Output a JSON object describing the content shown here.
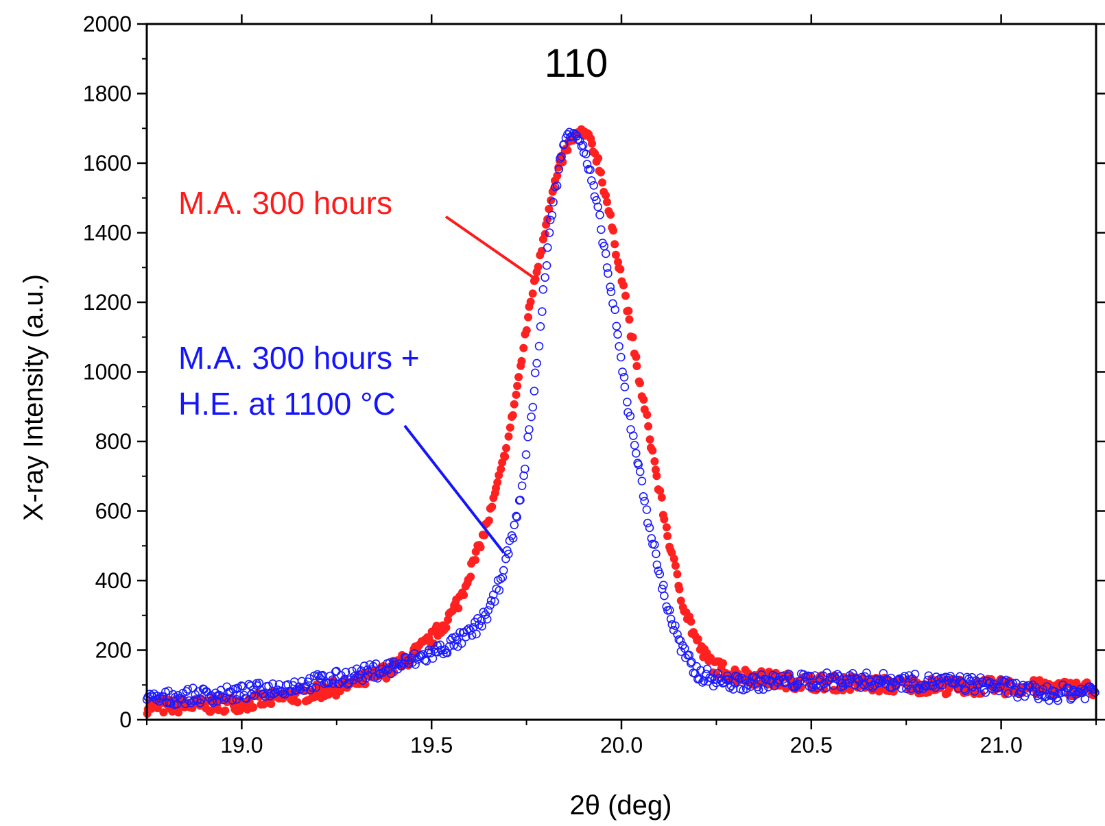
{
  "chart_data": {
    "type": "scatter",
    "title": "110",
    "xlabel": "2θ (deg)",
    "ylabel": "X-ray Intensity (a.u.)",
    "xlim": [
      18.75,
      21.25
    ],
    "ylim": [
      0,
      2000
    ],
    "x_ticks": [
      19.0,
      19.5,
      20.0,
      20.5,
      21.0
    ],
    "x_tick_labels": [
      "19.0",
      "19.5",
      "20.0",
      "20.5",
      "21.0"
    ],
    "y_ticks": [
      0,
      200,
      400,
      600,
      800,
      1000,
      1200,
      1400,
      1600,
      1800,
      2000
    ],
    "y_tick_labels": [
      "0",
      "200",
      "400",
      "600",
      "800",
      "1000",
      "1200",
      "1400",
      "1600",
      "1800",
      "2000"
    ],
    "grid": false,
    "series": [
      {
        "name": "M.A. 300 hours",
        "marker": "filled-circle",
        "color": "#ff2020",
        "points": [
          [
            18.75,
            40
          ],
          [
            18.8,
            38
          ],
          [
            18.85,
            42
          ],
          [
            18.9,
            40
          ],
          [
            18.95,
            45
          ],
          [
            19.0,
            48
          ],
          [
            19.05,
            55
          ],
          [
            19.1,
            62
          ],
          [
            19.15,
            70
          ],
          [
            19.2,
            80
          ],
          [
            19.25,
            92
          ],
          [
            19.3,
            105
          ],
          [
            19.35,
            125
          ],
          [
            19.4,
            150
          ],
          [
            19.45,
            185
          ],
          [
            19.5,
            230
          ],
          [
            19.55,
            300
          ],
          [
            19.58,
            360
          ],
          [
            19.6,
            420
          ],
          [
            19.63,
            510
          ],
          [
            19.65,
            580
          ],
          [
            19.68,
            700
          ],
          [
            19.7,
            800
          ],
          [
            19.72,
            920
          ],
          [
            19.74,
            1050
          ],
          [
            19.76,
            1200
          ],
          [
            19.78,
            1300
          ],
          [
            19.8,
            1420
          ],
          [
            19.82,
            1520
          ],
          [
            19.84,
            1600
          ],
          [
            19.86,
            1650
          ],
          [
            19.88,
            1680
          ],
          [
            19.9,
            1690
          ],
          [
            19.92,
            1660
          ],
          [
            19.94,
            1600
          ],
          [
            19.96,
            1500
          ],
          [
            19.98,
            1380
          ],
          [
            20.0,
            1280
          ],
          [
            20.02,
            1150
          ],
          [
            20.04,
            1020
          ],
          [
            20.06,
            900
          ],
          [
            20.08,
            780
          ],
          [
            20.1,
            660
          ],
          [
            20.12,
            540
          ],
          [
            20.14,
            440
          ],
          [
            20.16,
            350
          ],
          [
            20.18,
            280
          ],
          [
            20.2,
            220
          ],
          [
            20.22,
            180
          ],
          [
            20.25,
            150
          ],
          [
            20.3,
            130
          ],
          [
            20.4,
            115
          ],
          [
            20.5,
            108
          ],
          [
            20.6,
            105
          ],
          [
            20.7,
            100
          ],
          [
            20.8,
            98
          ],
          [
            20.9,
            95
          ],
          [
            21.0,
            95
          ],
          [
            21.1,
            92
          ],
          [
            21.2,
            90
          ],
          [
            21.25,
            88
          ]
        ]
      },
      {
        "name": "M.A. 300 hours + H.E. at 1100 °C",
        "marker": "open-circle",
        "color": "#1a1aff",
        "points": [
          [
            18.75,
            55
          ],
          [
            18.8,
            62
          ],
          [
            18.85,
            68
          ],
          [
            18.9,
            70
          ],
          [
            18.95,
            72
          ],
          [
            19.0,
            78
          ],
          [
            19.05,
            85
          ],
          [
            19.1,
            92
          ],
          [
            19.15,
            100
          ],
          [
            19.2,
            110
          ],
          [
            19.25,
            118
          ],
          [
            19.3,
            128
          ],
          [
            19.35,
            140
          ],
          [
            19.4,
            152
          ],
          [
            19.45,
            170
          ],
          [
            19.5,
            190
          ],
          [
            19.55,
            215
          ],
          [
            19.6,
            245
          ],
          [
            19.63,
            280
          ],
          [
            19.66,
            330
          ],
          [
            19.68,
            400
          ],
          [
            19.7,
            480
          ],
          [
            19.72,
            560
          ],
          [
            19.74,
            680
          ],
          [
            19.76,
            850
          ],
          [
            19.78,
            1050
          ],
          [
            19.8,
            1300
          ],
          [
            19.82,
            1480
          ],
          [
            19.84,
            1620
          ],
          [
            19.86,
            1690
          ],
          [
            19.88,
            1690
          ],
          [
            19.9,
            1640
          ],
          [
            19.92,
            1560
          ],
          [
            19.94,
            1450
          ],
          [
            19.96,
            1320
          ],
          [
            19.98,
            1180
          ],
          [
            20.0,
            1020
          ],
          [
            20.02,
            880
          ],
          [
            20.04,
            760
          ],
          [
            20.06,
            640
          ],
          [
            20.08,
            520
          ],
          [
            20.1,
            420
          ],
          [
            20.12,
            330
          ],
          [
            20.14,
            260
          ],
          [
            20.16,
            200
          ],
          [
            20.18,
            160
          ],
          [
            20.2,
            135
          ],
          [
            20.25,
            115
          ],
          [
            20.3,
            105
          ],
          [
            20.4,
            110
          ],
          [
            20.5,
            112
          ],
          [
            20.6,
            115
          ],
          [
            20.7,
            112
          ],
          [
            20.8,
            108
          ],
          [
            20.9,
            105
          ],
          [
            21.0,
            95
          ],
          [
            21.1,
            75
          ],
          [
            21.2,
            80
          ],
          [
            21.25,
            85
          ]
        ]
      }
    ],
    "annotations": [
      {
        "text": "M.A. 300 hours",
        "color": "#ff1a1a",
        "points_to": [
          19.77,
          1270
        ]
      },
      {
        "text": "M.A. 300 hours +",
        "text2": "H.E. at 1100 °C",
        "color": "#1414ff",
        "points_to": [
          19.69,
          480
        ]
      }
    ]
  }
}
